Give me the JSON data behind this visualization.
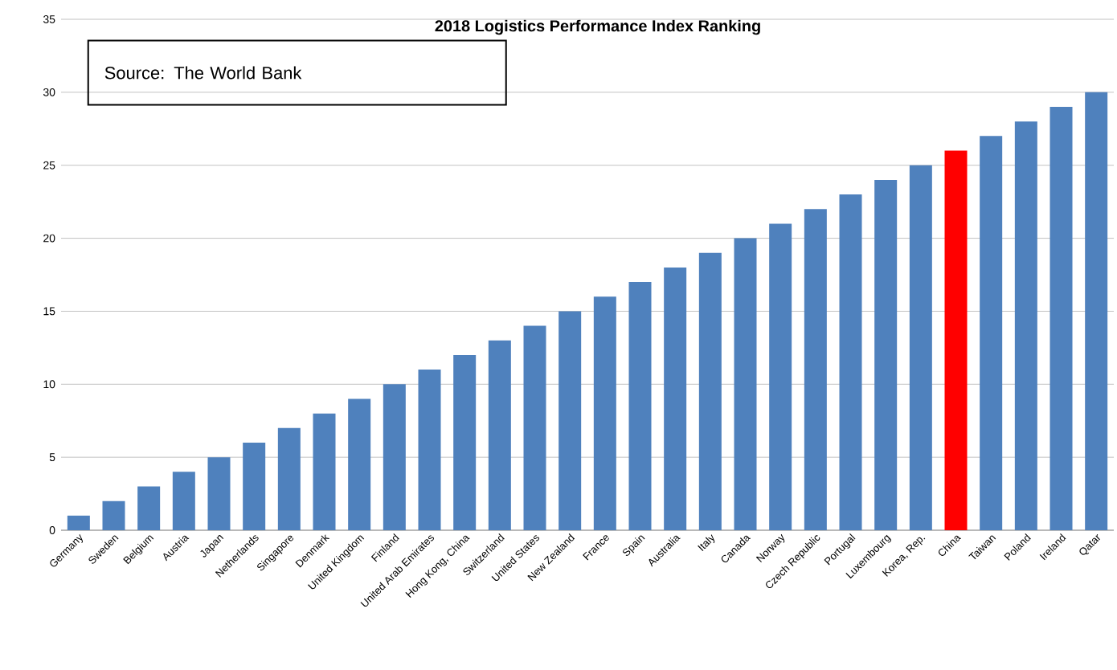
{
  "chart_data": {
    "type": "bar",
    "title": "2018 Logistics Performance Index Ranking",
    "categories": [
      "Germany",
      "Sweden",
      "Belgium",
      "Austria",
      "Japan",
      "Netherlands",
      "Singapore",
      "Denmark",
      "United Kingdom",
      "Finland",
      "United Arab Emirates",
      "Hong Kong, China",
      "Switzerland",
      "United States",
      "New Zealand",
      "France",
      "Spain",
      "Australia",
      "Italy",
      "Canada",
      "Norway",
      "Czech Republic",
      "Portugal",
      "Luxembourg",
      "Korea, Rep.",
      "China",
      "Taiwan",
      "Poland",
      "Ireland",
      "Qatar"
    ],
    "values": [
      1,
      2,
      3,
      4,
      5,
      6,
      7,
      8,
      9,
      10,
      11,
      12,
      13,
      14,
      15,
      16,
      17,
      18,
      19,
      20,
      21,
      22,
      23,
      24,
      25,
      26,
      27,
      28,
      29,
      30
    ],
    "colors": [
      "#4f81bd",
      "#4f81bd",
      "#4f81bd",
      "#4f81bd",
      "#4f81bd",
      "#4f81bd",
      "#4f81bd",
      "#4f81bd",
      "#4f81bd",
      "#4f81bd",
      "#4f81bd",
      "#4f81bd",
      "#4f81bd",
      "#4f81bd",
      "#4f81bd",
      "#4f81bd",
      "#4f81bd",
      "#4f81bd",
      "#4f81bd",
      "#4f81bd",
      "#4f81bd",
      "#4f81bd",
      "#4f81bd",
      "#4f81bd",
      "#4f81bd",
      "#ff0000",
      "#4f81bd",
      "#4f81bd",
      "#4f81bd",
      "#4f81bd"
    ],
    "ylim": [
      0,
      35
    ],
    "yticks": [
      0,
      5,
      10,
      15,
      20,
      25,
      30,
      35
    ],
    "grid": "y",
    "annotations": [
      "Source: The World Bank"
    ]
  }
}
